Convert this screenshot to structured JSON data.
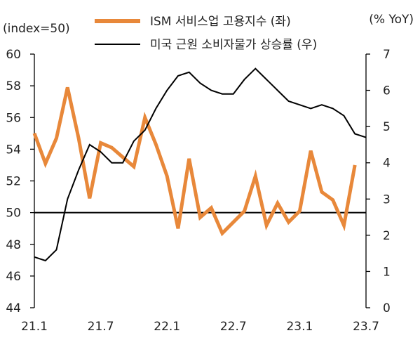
{
  "chart_data": {
    "type": "line",
    "left_axis_label": "(index=50)",
    "right_axis_label": "(% YoY)",
    "x_tick_labels": [
      "21.1",
      "21.7",
      "22.1",
      "22.7",
      "23.1",
      "23.7"
    ],
    "x_tick_months": [
      "2021-01",
      "2021-07",
      "2022-01",
      "2022-07",
      "2023-01",
      "2023-07"
    ],
    "x_range": [
      "2021-01",
      "2023-07"
    ],
    "left_ylim": [
      44,
      60
    ],
    "left_yticks": [
      44,
      46,
      48,
      50,
      52,
      54,
      56,
      58,
      60
    ],
    "right_ylim": [
      0,
      7
    ],
    "right_yticks": [
      0,
      1,
      2,
      3,
      4,
      5,
      6,
      7
    ],
    "reference_line": {
      "axis": "left",
      "value": 50
    },
    "grid": false,
    "legend_position": "top-center",
    "series": [
      {
        "name": "ISM 서비스업 고용지수 (좌)",
        "axis": "left",
        "color": "#e8883a",
        "x": [
          "2021-01",
          "2021-02",
          "2021-03",
          "2021-04",
          "2021-05",
          "2021-06",
          "2021-07",
          "2021-08",
          "2021-09",
          "2021-10",
          "2021-11",
          "2021-12",
          "2022-01",
          "2022-02",
          "2022-03",
          "2022-04",
          "2022-05",
          "2022-06",
          "2022-07",
          "2022-08",
          "2022-09",
          "2022-10",
          "2022-11",
          "2022-12",
          "2023-01",
          "2023-02",
          "2023-03",
          "2023-04",
          "2023-05",
          "2023-06"
        ],
        "values": [
          55.0,
          53.1,
          54.7,
          57.9,
          54.7,
          50.9,
          54.4,
          54.1,
          53.5,
          52.9,
          56.0,
          54.3,
          52.3,
          49.0,
          53.4,
          49.7,
          50.3,
          48.7,
          49.4,
          50.1,
          52.3,
          49.2,
          50.6,
          49.4,
          50.1,
          53.9,
          51.3,
          50.8,
          49.2,
          53.0
        ]
      },
      {
        "name": "미국 근원 소비자물가 상승률 (우)",
        "axis": "right",
        "color": "#000000",
        "x": [
          "2021-01",
          "2021-02",
          "2021-03",
          "2021-04",
          "2021-05",
          "2021-06",
          "2021-07",
          "2021-08",
          "2021-09",
          "2021-10",
          "2021-11",
          "2021-12",
          "2022-01",
          "2022-02",
          "2022-03",
          "2022-04",
          "2022-05",
          "2022-06",
          "2022-07",
          "2022-08",
          "2022-09",
          "2022-10",
          "2022-11",
          "2022-12",
          "2023-01",
          "2023-02",
          "2023-03",
          "2023-04",
          "2023-05",
          "2023-06",
          "2023-07"
        ],
        "values": [
          1.4,
          1.3,
          1.6,
          3.0,
          3.8,
          4.5,
          4.3,
          4.0,
          4.0,
          4.6,
          4.9,
          5.5,
          6.0,
          6.4,
          6.5,
          6.2,
          6.0,
          5.9,
          5.9,
          6.3,
          6.6,
          6.3,
          6.0,
          5.7,
          5.6,
          5.5,
          5.6,
          5.5,
          5.3,
          4.8,
          4.7
        ]
      }
    ]
  }
}
